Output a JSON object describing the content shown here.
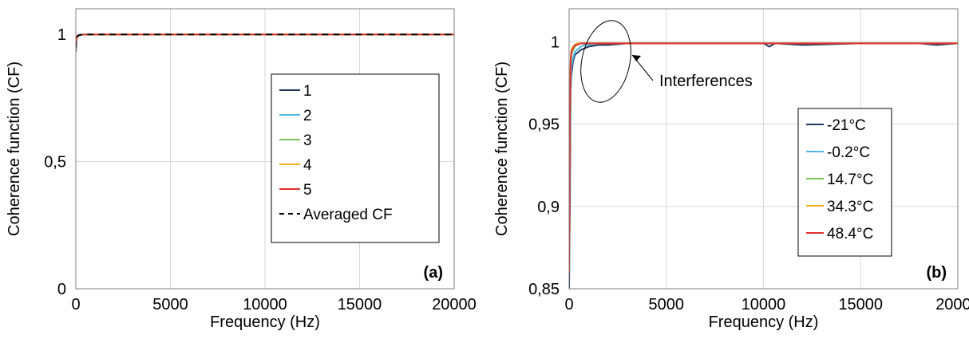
{
  "chart_data": [
    {
      "type": "line",
      "panel_label": "(a)",
      "xlabel": "Frequency (Hz)",
      "ylabel": "Coherence function (CF)",
      "xlim": [
        0,
        20000
      ],
      "ylim": [
        0,
        1.1
      ],
      "xticks": [
        0,
        5000,
        10000,
        15000,
        20000
      ],
      "xtick_labels": [
        "0",
        "5000",
        "10000",
        "15000",
        "20000"
      ],
      "yticks": [
        0,
        0.5,
        1
      ],
      "ytick_labels": [
        "0",
        "0,5",
        "1"
      ],
      "grid": true,
      "legend_position": "center-right",
      "series": [
        {
          "name": "1",
          "color": "#203864",
          "dash": "solid",
          "x": [
            0,
            30,
            80,
            150,
            300,
            600,
            1000,
            2000,
            5000,
            10000,
            15000,
            20000
          ],
          "y": [
            0.93,
            0.975,
            0.99,
            0.995,
            0.998,
            0.999,
            0.999,
            0.999,
            0.999,
            0.999,
            0.999,
            0.999
          ]
        },
        {
          "name": "2",
          "color": "#4bb8e8",
          "dash": "solid",
          "x": [
            0,
            30,
            80,
            150,
            300,
            600,
            1000,
            2000,
            5000,
            10000,
            15000,
            20000
          ],
          "y": [
            0.94,
            0.978,
            0.99,
            0.995,
            0.998,
            0.999,
            0.999,
            0.999,
            0.999,
            0.999,
            0.999,
            0.999
          ]
        },
        {
          "name": "3",
          "color": "#7ac35a",
          "dash": "solid",
          "x": [
            0,
            30,
            80,
            150,
            300,
            600,
            1000,
            2000,
            5000,
            10000,
            15000,
            20000
          ],
          "y": [
            0.95,
            0.98,
            0.992,
            0.996,
            0.998,
            0.999,
            0.999,
            0.999,
            0.999,
            0.999,
            0.999,
            0.999
          ]
        },
        {
          "name": "4",
          "color": "#f2b01e",
          "dash": "solid",
          "x": [
            0,
            30,
            80,
            150,
            300,
            600,
            1000,
            2000,
            5000,
            10000,
            15000,
            20000
          ],
          "y": [
            0.95,
            0.98,
            0.992,
            0.996,
            0.998,
            0.999,
            0.999,
            0.999,
            0.999,
            0.999,
            0.999,
            0.999
          ]
        },
        {
          "name": "5",
          "color": "#e03030",
          "dash": "solid",
          "x": [
            0,
            30,
            80,
            150,
            300,
            600,
            1000,
            2000,
            5000,
            10000,
            15000,
            20000
          ],
          "y": [
            0.955,
            0.982,
            0.993,
            0.996,
            0.998,
            0.999,
            0.999,
            0.999,
            0.999,
            0.999,
            0.999,
            0.999
          ]
        },
        {
          "name": "Averaged CF",
          "color": "#000000",
          "dash": "dashed",
          "x": [
            0,
            30,
            80,
            150,
            300,
            600,
            1000,
            2000,
            5000,
            10000,
            15000,
            20000
          ],
          "y": [
            0.945,
            0.979,
            0.991,
            0.996,
            0.998,
            0.999,
            0.999,
            0.999,
            0.999,
            0.999,
            0.999,
            0.999
          ]
        }
      ]
    },
    {
      "type": "line",
      "panel_label": "(b)",
      "xlabel": "Frequency (Hz)",
      "ylabel": "Coherence function (CF)",
      "xlim": [
        0,
        20000
      ],
      "ylim": [
        0.85,
        1.02
      ],
      "xticks": [
        0,
        5000,
        10000,
        15000,
        20000
      ],
      "xtick_labels": [
        "0",
        "5000",
        "10000",
        "15000",
        "20000"
      ],
      "yticks": [
        0.85,
        0.9,
        0.95,
        1
      ],
      "ytick_labels": [
        "0,85",
        "0,9",
        "0,95",
        "1"
      ],
      "grid": true,
      "legend_position": "center-right",
      "annotation": {
        "text": "Interferences",
        "target_x": 700,
        "target_y": 0.99
      },
      "series": [
        {
          "name": "-21°C",
          "color": "#203864",
          "x": [
            0,
            40,
            80,
            120,
            200,
            300,
            400,
            600,
            800,
            1000,
            1500,
            2000,
            3000,
            5000,
            8000,
            10000,
            10300,
            10600,
            12000,
            15000,
            18000,
            18900,
            20000
          ],
          "y": [
            0.85,
            0.9,
            0.97,
            0.98,
            0.988,
            0.992,
            0.993,
            0.995,
            0.996,
            0.997,
            0.998,
            0.998,
            0.999,
            0.999,
            0.999,
            0.999,
            0.997,
            0.999,
            0.998,
            0.999,
            0.999,
            0.998,
            0.999
          ]
        },
        {
          "name": "-0.2°C",
          "color": "#4bb8e8",
          "x": [
            0,
            40,
            80,
            120,
            200,
            300,
            400,
            600,
            800,
            1000,
            1500,
            2000,
            3000,
            5000,
            8000,
            10000,
            12000,
            15000,
            20000
          ],
          "y": [
            0.86,
            0.93,
            0.97,
            0.985,
            0.99,
            0.994,
            0.995,
            0.997,
            0.998,
            0.998,
            0.999,
            0.999,
            0.999,
            0.999,
            0.999,
            0.999,
            0.999,
            0.999,
            0.999
          ]
        },
        {
          "name": "14.7°C",
          "color": "#7ac35a",
          "x": [
            0,
            40,
            80,
            120,
            200,
            300,
            400,
            600,
            800,
            1000,
            1500,
            2000,
            3000,
            5000,
            8000,
            10000,
            12000,
            15000,
            20000
          ],
          "y": [
            0.87,
            0.95,
            0.985,
            0.992,
            0.995,
            0.997,
            0.998,
            0.999,
            0.999,
            0.999,
            0.999,
            0.999,
            0.999,
            0.999,
            0.999,
            0.999,
            0.999,
            0.999,
            0.999
          ]
        },
        {
          "name": "34.3°C",
          "color": "#f2b01e",
          "x": [
            0,
            40,
            80,
            120,
            200,
            300,
            400,
            600,
            800,
            1000,
            1500,
            2000,
            3000,
            5000,
            8000,
            10000,
            12000,
            15000,
            20000
          ],
          "y": [
            0.88,
            0.96,
            0.99,
            0.995,
            0.997,
            0.998,
            0.999,
            0.999,
            0.999,
            0.999,
            0.999,
            0.999,
            0.999,
            0.999,
            0.999,
            0.999,
            0.999,
            0.999,
            0.999
          ]
        },
        {
          "name": "48.4°C",
          "color": "#e03030",
          "x": [
            0,
            40,
            80,
            120,
            200,
            300,
            400,
            600,
            800,
            1000,
            1500,
            2000,
            3000,
            5000,
            8000,
            10000,
            12000,
            15000,
            20000
          ],
          "y": [
            0.86,
            0.955,
            0.988,
            0.994,
            0.996,
            0.998,
            0.998,
            0.999,
            0.999,
            0.999,
            0.999,
            0.999,
            0.999,
            0.999,
            0.999,
            0.999,
            0.999,
            0.999,
            0.999
          ]
        }
      ]
    }
  ]
}
